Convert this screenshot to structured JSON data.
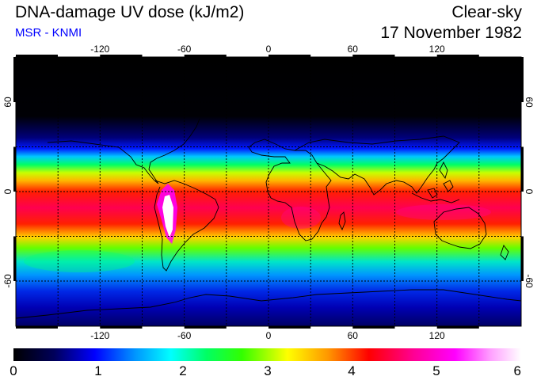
{
  "header": {
    "title": "DNA-damage UV dose (kJ/m2)",
    "source": "MSR - KNMI",
    "condition": "Clear-sky",
    "date": "17 November 1982"
  },
  "map": {
    "projection": "equirectangular",
    "lon_ticks": [
      "-120",
      "-60",
      "0",
      "60",
      "120"
    ],
    "lat_ticks": [
      "60",
      "0",
      "-60"
    ],
    "lat_ticks_right": [
      "60",
      "0",
      "-60"
    ],
    "grid": "dotted every 30 degrees"
  },
  "colorbar": {
    "labels": [
      "0",
      "1",
      "2",
      "3",
      "4",
      "5",
      "6"
    ],
    "min": 0,
    "max": 6,
    "colors": [
      "#000000",
      "#00007f",
      "#0000ff",
      "#00c8ff",
      "#00ffc8",
      "#00ff00",
      "#c8ff00",
      "#ffff00",
      "#ff9600",
      "#ff0000",
      "#ff0096",
      "#ff00ff",
      "#ffb4ff",
      "#ffffff"
    ]
  },
  "colors": {
    "subtitle": "#0000ff",
    "coastline": "#000000"
  }
}
